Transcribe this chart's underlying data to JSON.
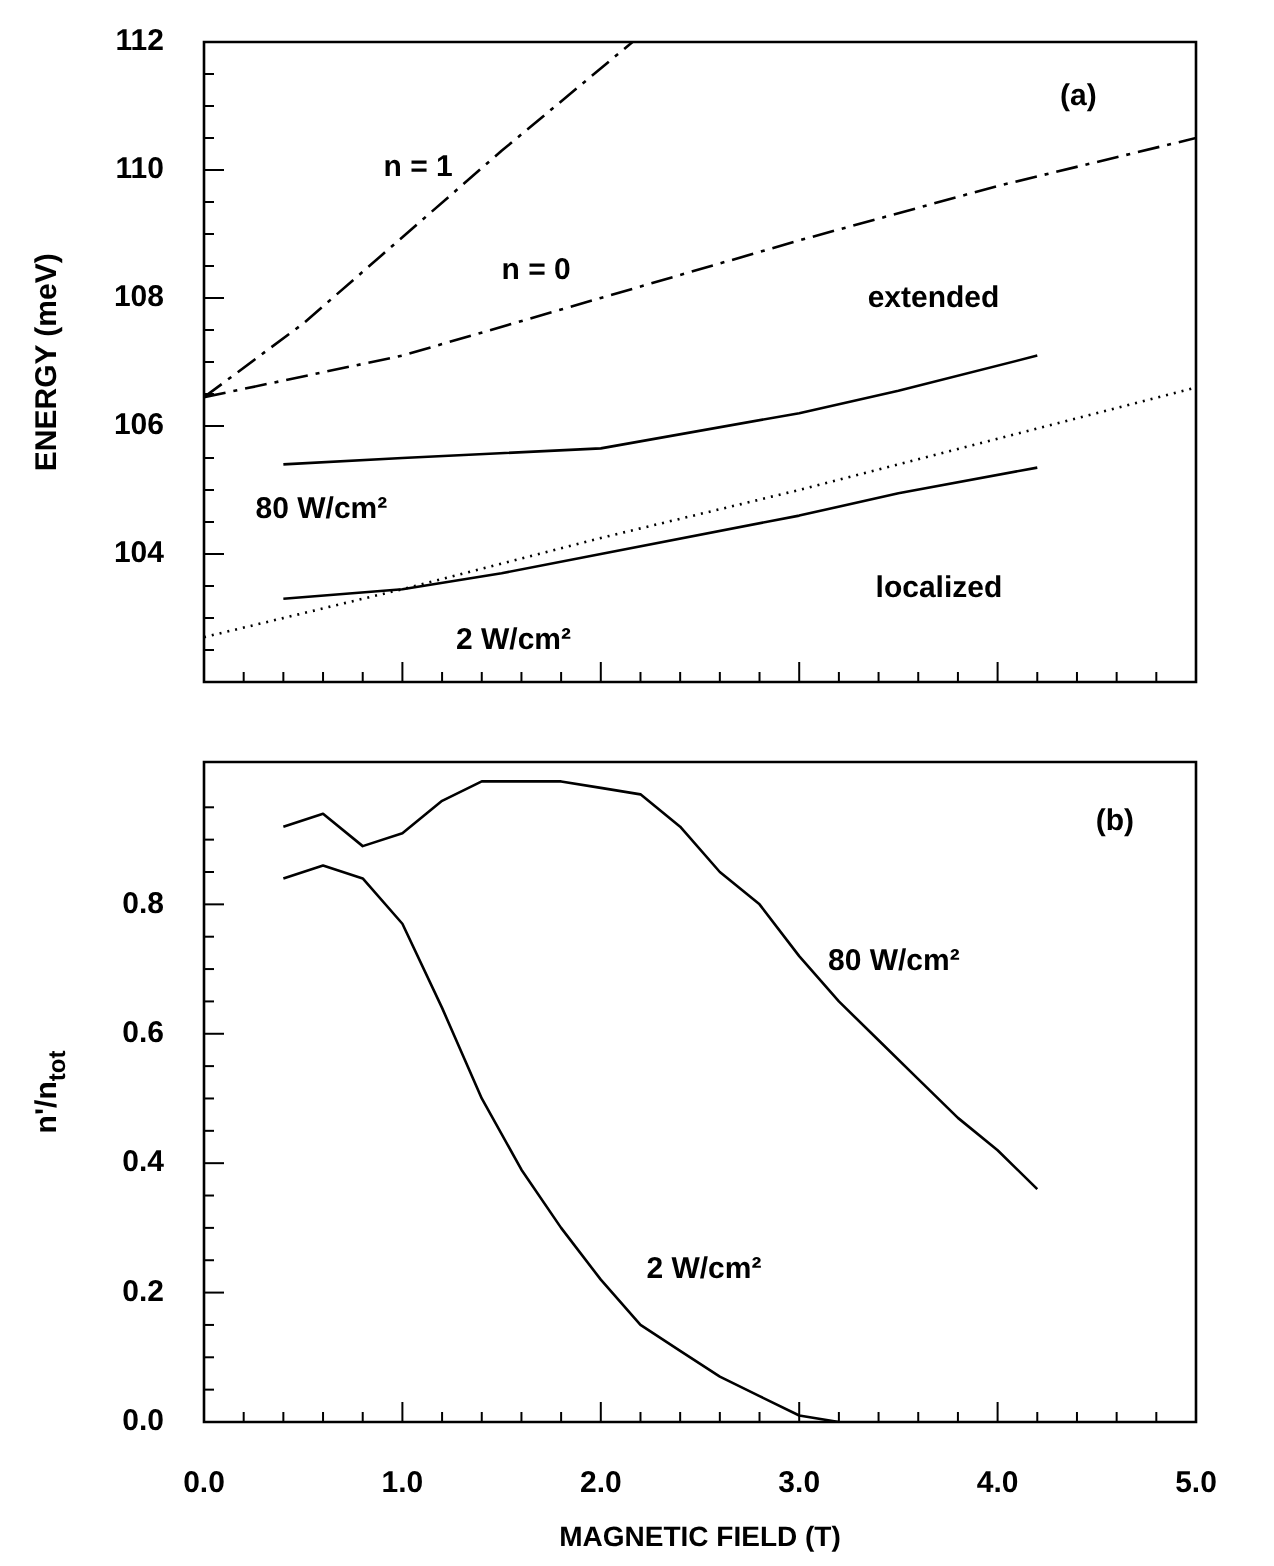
{
  "chart_data": [
    {
      "type": "line",
      "ylabel": "ENERGY (meV)",
      "xlim": [
        0,
        5
      ],
      "ylim": [
        102,
        112
      ],
      "tick_labels": "y",
      "grid": false,
      "legend": false,
      "marker": "none",
      "xticks": [
        0,
        {
          "value": 0.2,
          "label": null
        },
        {
          "value": 0.4,
          "label": null
        },
        {
          "value": 0.6,
          "label": null
        },
        {
          "value": 0.8,
          "label": null
        },
        1,
        {
          "value": 1.2,
          "label": null
        },
        {
          "value": 1.4,
          "label": null
        },
        {
          "value": 1.6,
          "label": null
        },
        {
          "value": 1.8,
          "label": null
        },
        2,
        {
          "value": 2.2,
          "label": null
        },
        {
          "value": 2.4,
          "label": null
        },
        {
          "value": 2.6,
          "label": null
        },
        {
          "value": 2.8,
          "label": null
        },
        3,
        {
          "value": 3.2,
          "label": null
        },
        {
          "value": 3.4,
          "label": null
        },
        {
          "value": 3.6,
          "label": null
        },
        {
          "value": 3.8,
          "label": null
        },
        4,
        {
          "value": 4.2,
          "label": null
        },
        {
          "value": 4.4,
          "label": null
        },
        {
          "value": 4.6,
          "label": null
        },
        {
          "value": 4.8,
          "label": null
        },
        5
      ],
      "yticks": [
        {
          "value": 102.5,
          "label": null
        },
        {
          "value": 103,
          "label": null
        },
        {
          "value": 103.5,
          "label": null
        },
        104,
        {
          "value": 104.5,
          "label": null
        },
        {
          "value": 105,
          "label": null
        },
        {
          "value": 105.5,
          "label": null
        },
        106,
        {
          "value": 106.5,
          "label": null
        },
        {
          "value": 107,
          "label": null
        },
        {
          "value": 107.5,
          "label": null
        },
        108,
        {
          "value": 108.5,
          "label": null
        },
        {
          "value": 109,
          "label": null
        },
        {
          "value": 109.5,
          "label": null
        },
        110,
        {
          "value": 110.5,
          "label": null
        },
        {
          "value": 111,
          "label": null
        },
        {
          "value": 111.5,
          "label": null
        },
        112
      ],
      "series": [
        {
          "color": "#000000",
          "line_style": "dashed",
          "x": [
            0,
            0.5,
            1,
            1.5,
            2.16
          ],
          "values": [
            106.45,
            107.6,
            108.95,
            110.3,
            112
          ]
        },
        {
          "color": "#000000",
          "line_style": "dashed",
          "x": [
            0,
            1,
            2,
            3,
            4,
            5
          ],
          "values": [
            106.45,
            107.1,
            108.0,
            108.9,
            109.75,
            110.5
          ]
        },
        {
          "color": "#000000",
          "line_style": "solid",
          "x": [
            0.4,
            1,
            2,
            3,
            3.5,
            4.2
          ],
          "values": [
            105.4,
            105.5,
            105.65,
            106.2,
            106.55,
            107.1
          ]
        },
        {
          "color": "#000000",
          "line_style": "solid",
          "x": [
            0.4,
            1,
            1.5,
            2,
            3,
            3.5,
            4.2
          ],
          "values": [
            103.3,
            103.45,
            103.7,
            104.0,
            104.6,
            104.95,
            105.35
          ]
        },
        {
          "color": "#000000",
          "line_style": "dotted",
          "x": [
            0,
            1,
            2,
            3,
            4,
            5
          ],
          "values": [
            102.7,
            103.45,
            104.25,
            105.0,
            105.8,
            106.6
          ]
        }
      ],
      "annotations": [
        "(a)",
        "n = 1",
        "n = 0",
        "extended",
        "80 W/cm²",
        "localized",
        "2 W/cm²"
      ]
    },
    {
      "type": "line",
      "xlabel": "MAGNETIC FIELD (T)",
      "ylabel": "n'/n$_{tot}$",
      "xlim": [
        0,
        5
      ],
      "ylim": [
        0,
        1.02
      ],
      "grid": false,
      "legend": false,
      "marker": "none",
      "xticks": [
        {
          "value": 0,
          "label": "0.0"
        },
        {
          "value": 0.2,
          "label": null
        },
        {
          "value": 0.4,
          "label": null
        },
        {
          "value": 0.6,
          "label": null
        },
        {
          "value": 0.8,
          "label": null
        },
        {
          "value": 1,
          "label": "1.0"
        },
        {
          "value": 1.2,
          "label": null
        },
        {
          "value": 1.4,
          "label": null
        },
        {
          "value": 1.6,
          "label": null
        },
        {
          "value": 1.8,
          "label": null
        },
        {
          "value": 2,
          "label": "2.0"
        },
        {
          "value": 2.2,
          "label": null
        },
        {
          "value": 2.4,
          "label": null
        },
        {
          "value": 2.6,
          "label": null
        },
        {
          "value": 2.8,
          "label": null
        },
        {
          "value": 3,
          "label": "3.0"
        },
        {
          "value": 3.2,
          "label": null
        },
        {
          "value": 3.4,
          "label": null
        },
        {
          "value": 3.6,
          "label": null
        },
        {
          "value": 3.8,
          "label": null
        },
        {
          "value": 4,
          "label": "4.0"
        },
        {
          "value": 4.2,
          "label": null
        },
        {
          "value": 4.4,
          "label": null
        },
        {
          "value": 4.6,
          "label": null
        },
        {
          "value": 4.8,
          "label": null
        },
        {
          "value": 5,
          "label": "5.0"
        }
      ],
      "yticks": [
        {
          "value": 0,
          "label": "0.0"
        },
        {
          "value": 0.05,
          "label": null
        },
        {
          "value": 0.1,
          "label": null
        },
        {
          "value": 0.15,
          "label": null
        },
        {
          "value": 0.2,
          "label": "0.2"
        },
        {
          "value": 0.25,
          "label": null
        },
        {
          "value": 0.3,
          "label": null
        },
        {
          "value": 0.35,
          "label": null
        },
        {
          "value": 0.4,
          "label": "0.4"
        },
        {
          "value": 0.45,
          "label": null
        },
        {
          "value": 0.5,
          "label": null
        },
        {
          "value": 0.55,
          "label": null
        },
        {
          "value": 0.6,
          "label": "0.6"
        },
        {
          "value": 0.65,
          "label": null
        },
        {
          "value": 0.7,
          "label": null
        },
        {
          "value": 0.75,
          "label": null
        },
        {
          "value": 0.8,
          "label": "0.8"
        },
        {
          "value": 0.85,
          "label": null
        },
        {
          "value": 0.9,
          "label": null
        },
        {
          "value": 0.95,
          "label": null
        }
      ],
      "x": [
        0.4,
        0.6,
        0.8,
        1.0,
        1.2,
        1.4,
        1.6,
        1.8,
        2.0,
        2.2,
        2.4,
        2.6,
        2.8,
        3.0,
        3.2,
        3.4,
        3.6,
        3.8,
        4.0,
        4.2
      ],
      "series": [
        {
          "color": "#000000",
          "values": [
            0.92,
            0.94,
            0.89,
            0.91,
            0.96,
            0.99,
            0.99,
            0.99,
            0.98,
            0.97,
            0.92,
            0.85,
            0.8,
            0.72,
            0.65,
            0.59,
            0.53,
            0.47,
            0.42,
            0.36
          ]
        },
        {
          "color": "#000000",
          "values": [
            0.84,
            0.86,
            0.84,
            0.77,
            0.64,
            0.5,
            0.39,
            0.3,
            0.22,
            0.15,
            0.11,
            0.07,
            0.04,
            0.01,
            0.0,
            null,
            null,
            null,
            null,
            null
          ]
        }
      ],
      "annotations": [
        "(b)",
        "80 W/cm²",
        "2 W/cm²"
      ]
    }
  ]
}
